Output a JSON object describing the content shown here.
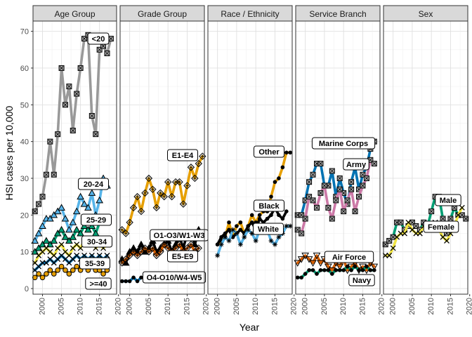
{
  "chart_data": {
    "type": "line",
    "xlabel": "Year",
    "ylabel": "HSI cases per 10,000",
    "xlim": [
      1997.5,
      2019.5
    ],
    "ylim": [
      -1.5,
      73
    ],
    "x_ticks": [
      2000,
      2005,
      2010,
      2015,
      2020
    ],
    "y_ticks": [
      0,
      10,
      20,
      30,
      40,
      50,
      60,
      70
    ],
    "grid": true,
    "legend": "none",
    "x": [
      1998,
      1999,
      2000,
      2001,
      2002,
      2003,
      2004,
      2005,
      2006,
      2007,
      2008,
      2009,
      2010,
      2011,
      2012,
      2013,
      2014,
      2015,
      2016,
      2017,
      2018,
      2019
    ],
    "panels": [
      {
        "strip": "Age Group",
        "series": [
          {
            "label": "<20",
            "color": "#999999",
            "marker": "square",
            "values": [
              21,
              23,
              25,
              31,
              40,
              31,
              42,
              60,
              50,
              55,
              43,
              53,
              60,
              68,
              69,
              47,
              42,
              65,
              66,
              64,
              68,
              null
            ]
          },
          {
            "label": "20-24",
            "color": "#56B4E9",
            "marker": "triangle",
            "values": [
              13,
              15,
              17,
              19,
              19,
              20,
              21,
              22,
              19,
              16,
              18,
              21,
              25,
              23,
              22,
              26,
              20,
              24,
              30,
              28,
              null,
              null
            ]
          },
          {
            "label": "25-29",
            "color": "#009E73",
            "marker": "triangle",
            "values": [
              10,
              11,
              12,
              13,
              12,
              13,
              15,
              16,
              14,
              13,
              14,
              16,
              15,
              17,
              16,
              17,
              15,
              18,
              19,
              18,
              null,
              null
            ]
          },
          {
            "label": "30-34",
            "color": "#F0E442",
            "marker": "x",
            "values": [
              7,
              9,
              10,
              11,
              10,
              9,
              11,
              12,
              10,
              9,
              11,
              12,
              11,
              13,
              12,
              13,
              11,
              12,
              11,
              12,
              null,
              null
            ]
          },
          {
            "label": "35-39",
            "color": "#0072B2",
            "marker": "x",
            "values": [
              5,
              6,
              7,
              7,
              8,
              7,
              8,
              9,
              8,
              7,
              8,
              9,
              8,
              9,
              8,
              9,
              8,
              9,
              8,
              9,
              null,
              null
            ]
          },
          {
            "label": ">=40",
            "color": "#E69F00",
            "marker": "circle-open",
            "values": [
              3,
              4,
              3,
              4,
              5,
              4,
              5,
              6,
              5,
              4,
              5,
              6,
              5,
              6,
              5,
              6,
              5,
              5,
              4,
              5,
              null,
              null
            ]
          }
        ]
      },
      {
        "strip": "Grade Group",
        "series": [
          {
            "label": "E1-E4",
            "color": "#E69F00",
            "marker": "diamond",
            "values": [
              16,
              15,
              18,
              22,
              25,
              21,
              26,
              30,
              27,
              22,
              26,
              25,
              29,
              25,
              29,
              29,
              23,
              28,
              33,
              30,
              34,
              36
            ]
          },
          {
            "label": "O1-O3/W1-W3",
            "color": "#000000",
            "marker": "triangle",
            "values": [
              8,
              7,
              10,
              11,
              10,
              12,
              10,
              11,
              13,
              10,
              11,
              12,
              13,
              10,
              12,
              14,
              11,
              15,
              15,
              12,
              16,
              null
            ]
          },
          {
            "label": "E5-E9",
            "color": "#D55E00",
            "marker": "diamond",
            "values": [
              7,
              8,
              9,
              10,
              9,
              10,
              11,
              10,
              11,
              9,
              10,
              12,
              11,
              10,
              11,
              12,
              10,
              11,
              12,
              10,
              11,
              null
            ]
          },
          {
            "label": "O4-O10/W4-W5",
            "color": "#0072B2",
            "marker": "dot",
            "values": [
              2,
              2,
              2,
              3,
              2,
              3,
              3,
              3,
              2,
              3,
              3,
              3,
              3,
              4,
              3,
              3,
              4,
              3,
              4,
              3,
              4,
              null
            ]
          }
        ]
      },
      {
        "strip": "Race / Ethnicity",
        "series": [
          {
            "label": "Other",
            "color": "#E69F00",
            "marker": "dot",
            "values": [
              null,
              null,
              12,
              13,
              14,
              18,
              14,
              17,
              18,
              15,
              17,
              20,
              18,
              20,
              21,
              21,
              25,
              29,
              30,
              33,
              37,
              37
            ]
          },
          {
            "label": "Black",
            "color": "#000000",
            "marker": "dot",
            "values": [
              null,
              null,
              12,
              14,
              15,
              16,
              14,
              15,
              16,
              15,
              17,
              18,
              16,
              19,
              18,
              19,
              20,
              22,
              20,
              19,
              21,
              null
            ]
          },
          {
            "label": "White",
            "color": "#56B4E9",
            "marker": "asterisk",
            "values": [
              null,
              null,
              9,
              12,
              14,
              13,
              16,
              15,
              12,
              14,
              16,
              15,
              13,
              16,
              17,
              16,
              13,
              12,
              14,
              15,
              17,
              17
            ]
          }
        ]
      },
      {
        "strip": "Service Branch",
        "series": [
          {
            "label": "Marine Corps",
            "color": "#0072B2",
            "marker": "square",
            "values": [
              20,
              20,
              24,
              29,
              31,
              34,
              34,
              28,
              28,
              32,
              25,
              30,
              26,
              23,
              29,
              33,
              27,
              31,
              33,
              38,
              40,
              null
            ]
          },
          {
            "label": "Army",
            "color": "#CC79A7",
            "marker": "square",
            "values": [
              16,
              15,
              19,
              25,
              24,
              22,
              26,
              28,
              22,
              19,
              24,
              27,
              21,
              24,
              27,
              21,
              25,
              28,
              30,
              35,
              34,
              null
            ]
          },
          {
            "label": "Air Force",
            "color": "#D55E00",
            "marker": "triangle-down",
            "values": [
              7,
              8,
              9,
              8,
              7,
              9,
              7,
              8,
              6,
              5,
              7,
              6,
              8,
              5,
              6,
              7,
              5,
              6,
              5,
              7,
              6,
              null
            ]
          },
          {
            "label": "Navy",
            "color": "#009E73",
            "marker": "dot",
            "values": [
              3,
              3,
              4,
              5,
              5,
              4,
              5,
              5,
              5,
              4,
              5,
              5,
              5,
              6,
              5,
              6,
              5,
              5,
              6,
              5,
              5,
              null
            ]
          }
        ]
      },
      {
        "strip": "Sex",
        "series": [
          {
            "label": "Male",
            "color": "#009E73",
            "marker": "square",
            "values": [
              12,
              13,
              14,
              18,
              18,
              16,
              17,
              18,
              17,
              16,
              18,
              17,
              21,
              25,
              25,
              19,
              15,
              19,
              22,
              20,
              20,
              19
            ]
          },
          {
            "label": "Female",
            "color": "#F0E442",
            "marker": "x",
            "values": [
              9,
              9,
              11,
              14,
              15,
              15,
              18,
              16,
              15,
              15,
              17,
              16,
              16,
              18,
              16,
              14,
              13,
              15,
              17,
              20,
              22,
              null
            ]
          }
        ]
      }
    ]
  }
}
